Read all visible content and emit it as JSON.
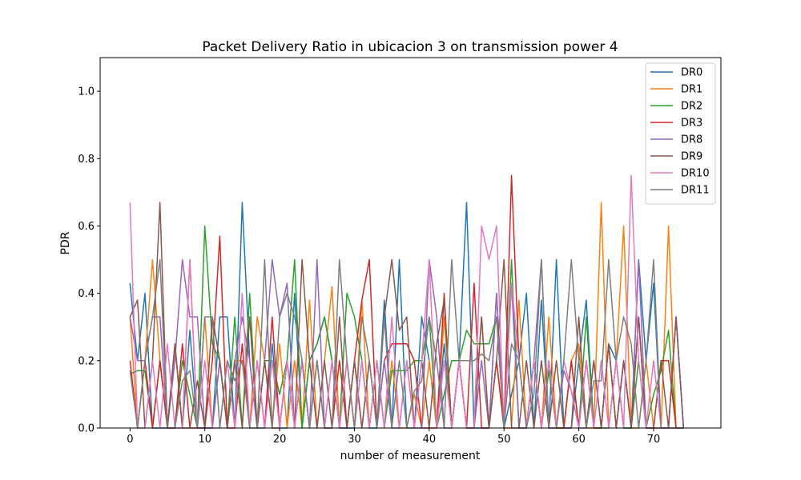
{
  "chart_data": {
    "type": "line",
    "title": "Packet Delivery Ratio in ubicacion 3 on transmission power 4",
    "xlabel": "number of measurement",
    "ylabel": "PDR",
    "xlim": [
      -4,
      79
    ],
    "ylim": [
      0,
      1.1
    ],
    "xticks": [
      0,
      10,
      20,
      30,
      40,
      50,
      60,
      70
    ],
    "yticks": [
      0.0,
      0.2,
      0.4,
      0.6,
      0.8,
      1.0
    ],
    "xtick_labels": [
      "0",
      "10",
      "20",
      "30",
      "40",
      "50",
      "60",
      "70"
    ],
    "ytick_labels": [
      "0.0",
      "0.2",
      "0.4",
      "0.6",
      "0.8",
      "1.0"
    ],
    "grid": false,
    "legend_position": "top-right",
    "series": [
      {
        "name": "DR0",
        "color": "#1f77b4",
        "values": [
          0.43,
          0.2,
          0.4,
          0.0,
          0.0,
          0.0,
          0.25,
          0.0,
          0.29,
          0.0,
          0.0,
          0.0,
          0.33,
          0.33,
          0.0,
          0.67,
          0.2,
          0.0,
          0.0,
          0.25,
          0.0,
          0.0,
          0.4,
          0.0,
          0.2,
          0.25,
          0.33,
          0.2,
          0.0,
          0.0,
          0.0,
          0.2,
          0.0,
          0.0,
          0.38,
          0.0,
          0.5,
          0.0,
          0.0,
          0.33,
          0.2,
          0.0,
          0.25,
          0.0,
          0.2,
          0.67,
          0.0,
          0.0,
          0.0,
          0.4,
          0.0,
          0.1,
          0.2,
          0.4,
          0.0,
          0.38,
          0.0,
          0.5,
          0.0,
          0.0,
          0.2,
          0.38,
          0.0,
          0.0,
          0.25,
          0.2,
          0.0,
          0.0,
          0.5,
          0.2,
          0.43,
          0.0,
          0.0,
          0.33,
          0.0
        ]
      },
      {
        "name": "DR1",
        "color": "#ff7f0e",
        "values": [
          0.33,
          0.0,
          0.2,
          0.5,
          0.2,
          0.0,
          0.25,
          0.0,
          0.5,
          0.0,
          0.33,
          0.0,
          0.2,
          0.0,
          0.2,
          0.2,
          0.0,
          0.33,
          0.2,
          0.0,
          0.25,
          0.0,
          0.2,
          0.0,
          0.38,
          0.0,
          0.2,
          0.42,
          0.0,
          0.2,
          0.0,
          0.38,
          0.0,
          0.2,
          0.0,
          0.2,
          0.0,
          0.0,
          0.1,
          0.0,
          0.2,
          0.0,
          0.33,
          0.0,
          0.2,
          0.0,
          0.0,
          0.33,
          0.0,
          0.2,
          0.0,
          0.0,
          0.38,
          0.0,
          0.2,
          0.0,
          0.33,
          0.0,
          0.0,
          0.2,
          0.25,
          0.0,
          0.0,
          0.67,
          0.0,
          0.2,
          0.6,
          0.0,
          0.0,
          0.2,
          0.0,
          0.0,
          0.6,
          0.0,
          0.0
        ]
      },
      {
        "name": "DR2",
        "color": "#2ca02c",
        "values": [
          0.16,
          0.17,
          0.17,
          0.0,
          0.2,
          0.0,
          0.0,
          0.2,
          0.1,
          0.0,
          0.6,
          0.25,
          0.2,
          0.0,
          0.33,
          0.0,
          0.4,
          0.0,
          0.2,
          0.2,
          0.1,
          0.2,
          0.5,
          0.0,
          0.2,
          0.25,
          0.33,
          0.2,
          0.0,
          0.4,
          0.33,
          0.2,
          0.0,
          0.2,
          0.0,
          0.17,
          0.17,
          0.17,
          0.2,
          0.2,
          0.33,
          0.0,
          0.1,
          0.2,
          0.2,
          0.29,
          0.25,
          0.25,
          0.25,
          0.33,
          0.0,
          0.5,
          0.0,
          0.0,
          0.2,
          0.0,
          0.17,
          0.0,
          0.0,
          0.2,
          0.0,
          0.33,
          0.0,
          0.0,
          0.0,
          0.2,
          0.0,
          0.0,
          0.2,
          0.0,
          0.1,
          0.17,
          0.29,
          0.0,
          0.0
        ]
      },
      {
        "name": "DR3",
        "color": "#d62728",
        "values": [
          0.2,
          0.0,
          0.2,
          0.0,
          0.2,
          0.0,
          0.0,
          0.25,
          0.0,
          0.0,
          0.0,
          0.2,
          0.57,
          0.0,
          0.0,
          0.25,
          0.0,
          0.2,
          0.0,
          0.33,
          0.0,
          0.2,
          0.0,
          0.2,
          0.0,
          0.2,
          0.0,
          0.0,
          0.2,
          0.0,
          0.2,
          0.38,
          0.5,
          0.0,
          0.2,
          0.25,
          0.25,
          0.25,
          0.2,
          0.0,
          0.0,
          0.0,
          0.4,
          0.0,
          0.2,
          0.0,
          0.43,
          0.0,
          0.0,
          0.2,
          0.0,
          0.75,
          0.2,
          0.0,
          0.2,
          0.0,
          0.2,
          0.0,
          0.0,
          0.2,
          0.0,
          0.2,
          0.0,
          0.0,
          0.25,
          0.0,
          0.2,
          0.0,
          0.33,
          0.0,
          0.0,
          0.2,
          0.2,
          0.0,
          0.0
        ]
      },
      {
        "name": "DR8",
        "color": "#9467bd",
        "values": [
          0.33,
          0.2,
          0.2,
          0.33,
          0.33,
          0.0,
          0.2,
          0.5,
          0.33,
          0.33,
          0.0,
          0.0,
          0.2,
          0.0,
          0.2,
          0.33,
          0.2,
          0.0,
          0.2,
          0.5,
          0.33,
          0.43,
          0.0,
          0.2,
          0.0,
          0.5,
          0.0,
          0.2,
          0.0,
          0.0,
          0.2,
          0.0,
          0.2,
          0.0,
          0.2,
          0.0,
          0.0,
          0.2,
          0.0,
          0.0,
          0.5,
          0.33,
          0.0,
          0.0,
          0.2,
          0.0,
          0.0,
          0.2,
          0.0,
          0.4,
          0.0,
          0.43,
          0.0,
          0.0,
          0.2,
          0.5,
          0.0,
          0.0,
          0.17,
          0.11,
          0.0,
          0.0,
          0.2,
          0.0,
          0.25,
          0.0,
          0.2,
          0.0,
          0.5,
          0.0,
          0.0,
          0.0,
          0.0,
          0.33,
          0.0
        ]
      },
      {
        "name": "DR9",
        "color": "#8c564b",
        "values": [
          0.33,
          0.38,
          0.0,
          0.2,
          0.67,
          0.0,
          0.25,
          0.0,
          0.0,
          0.14,
          0.0,
          0.33,
          0.2,
          0.0,
          0.2,
          0.0,
          0.33,
          0.0,
          0.2,
          0.0,
          0.0,
          0.2,
          0.0,
          0.5,
          0.2,
          0.0,
          0.2,
          0.0,
          0.33,
          0.0,
          0.2,
          0.0,
          0.2,
          0.0,
          0.33,
          0.5,
          0.29,
          0.33,
          0.0,
          0.2,
          0.0,
          0.25,
          0.38,
          0.0,
          0.2,
          0.0,
          0.0,
          0.33,
          0.0,
          0.2,
          0.5,
          0.0,
          0.0,
          0.2,
          0.0,
          0.2,
          0.0,
          0.2,
          0.0,
          0.0,
          0.33,
          0.0,
          0.2,
          0.0,
          0.25,
          0.0,
          0.2,
          0.0,
          0.33,
          0.0,
          0.0,
          0.2,
          0.0,
          0.33,
          0.0
        ]
      },
      {
        "name": "DR10",
        "color": "#e377c2",
        "values": [
          0.67,
          0.0,
          0.0,
          0.2,
          0.0,
          0.25,
          0.0,
          0.0,
          0.5,
          0.0,
          0.2,
          0.0,
          0.0,
          0.2,
          0.0,
          0.4,
          0.0,
          0.2,
          0.0,
          0.2,
          0.0,
          0.2,
          0.0,
          0.2,
          0.0,
          0.2,
          0.0,
          0.2,
          0.0,
          0.2,
          0.0,
          0.2,
          0.0,
          0.2,
          0.0,
          0.33,
          0.0,
          0.2,
          0.0,
          0.2,
          0.5,
          0.0,
          0.2,
          0.0,
          0.2,
          0.0,
          0.0,
          0.6,
          0.5,
          0.6,
          0.0,
          0.43,
          0.2,
          0.0,
          0.2,
          0.0,
          0.2,
          0.0,
          0.2,
          0.11,
          0.0,
          0.2,
          0.0,
          0.2,
          0.0,
          0.2,
          0.0,
          0.75,
          0.2,
          0.0,
          0.2,
          0.0,
          0.0,
          0.0,
          0.0
        ]
      },
      {
        "name": "DR11",
        "color": "#7f7f7f",
        "values": [
          0.17,
          0.0,
          0.2,
          0.33,
          0.5,
          0.0,
          0.0,
          0.14,
          0.17,
          0.0,
          0.33,
          0.33,
          0.0,
          0.2,
          0.14,
          0.2,
          0.0,
          0.0,
          0.5,
          0.0,
          0.33,
          0.4,
          0.33,
          0.2,
          0.0,
          0.2,
          0.0,
          0.0,
          0.5,
          0.2,
          0.0,
          0.33,
          0.2,
          0.0,
          0.33,
          0.0,
          0.2,
          0.0,
          0.11,
          0.14,
          0.33,
          0.2,
          0.0,
          0.5,
          0.2,
          0.2,
          0.2,
          0.22,
          0.2,
          0.33,
          0.0,
          0.25,
          0.2,
          0.0,
          0.1,
          0.5,
          0.0,
          0.0,
          0.2,
          0.5,
          0.2,
          0.0,
          0.14,
          0.14,
          0.5,
          0.2,
          0.33,
          0.25,
          0.0,
          0.2,
          0.5,
          0.0,
          0.0,
          0.0,
          0.0
        ]
      }
    ]
  }
}
